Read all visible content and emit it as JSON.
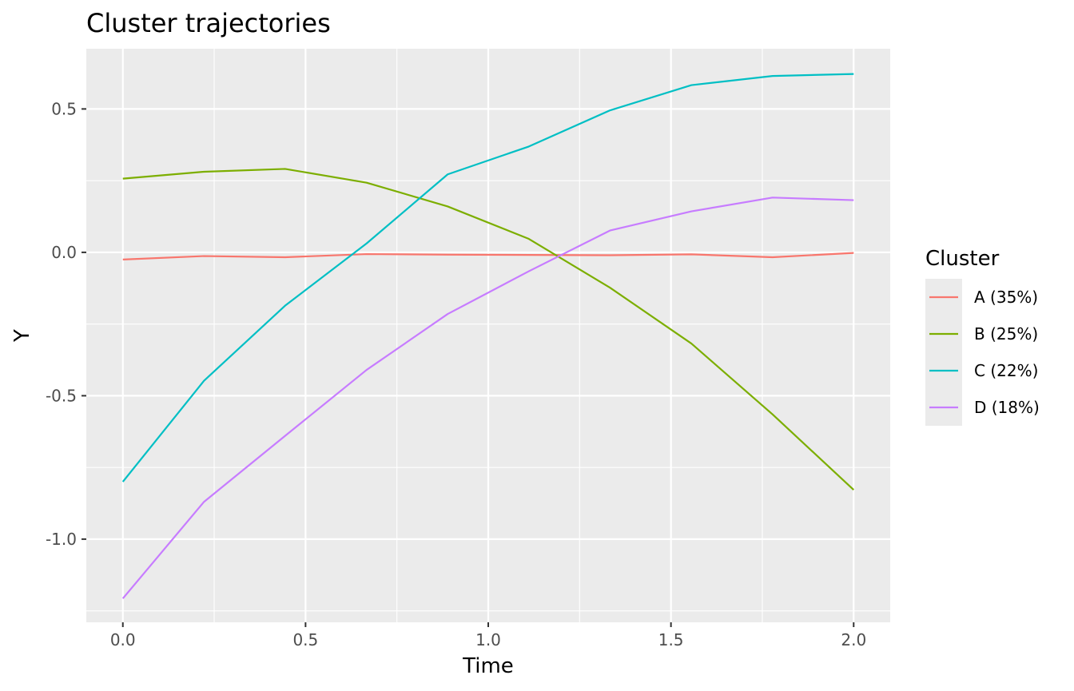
{
  "chart_data": {
    "type": "line",
    "title": "Cluster trajectories",
    "xlabel": "Time",
    "ylabel": "Y",
    "xlim": [
      -0.1,
      2.1
    ],
    "ylim": [
      -1.29,
      0.71
    ],
    "x_ticks": [
      0.0,
      0.5,
      1.0,
      1.5,
      2.0
    ],
    "x_tick_labels": [
      "0.0",
      "0.5",
      "1.0",
      "1.5",
      "2.0"
    ],
    "y_ticks": [
      -1.0,
      -0.5,
      0.0,
      0.5
    ],
    "y_tick_labels": [
      "-1.0",
      "-0.5",
      "0.0",
      "0.5"
    ],
    "grid": true,
    "legend_title": "Cluster",
    "legend_position": "right",
    "x": [
      0.0,
      0.222,
      0.444,
      0.667,
      0.889,
      1.111,
      1.333,
      1.556,
      1.778,
      2.0
    ],
    "series": [
      {
        "name": "A (35%)",
        "color": "#F8766D",
        "values": [
          -0.025,
          -0.013,
          -0.017,
          -0.006,
          -0.008,
          -0.009,
          -0.01,
          -0.007,
          -0.017,
          -0.002
        ]
      },
      {
        "name": "B (25%)",
        "color": "#7CAE00",
        "values": [
          0.257,
          0.281,
          0.291,
          0.243,
          0.16,
          0.047,
          -0.123,
          -0.318,
          -0.565,
          -0.828
        ]
      },
      {
        "name": "C (22%)",
        "color": "#00BFC4",
        "values": [
          -0.8,
          -0.448,
          -0.186,
          0.031,
          0.272,
          0.369,
          0.495,
          0.583,
          0.615,
          0.622
        ]
      },
      {
        "name": "D (18%)",
        "color": "#C77CFF",
        "values": [
          -1.207,
          -0.87,
          -0.64,
          -0.41,
          -0.215,
          -0.066,
          0.076,
          0.143,
          0.191,
          0.182
        ]
      }
    ]
  }
}
